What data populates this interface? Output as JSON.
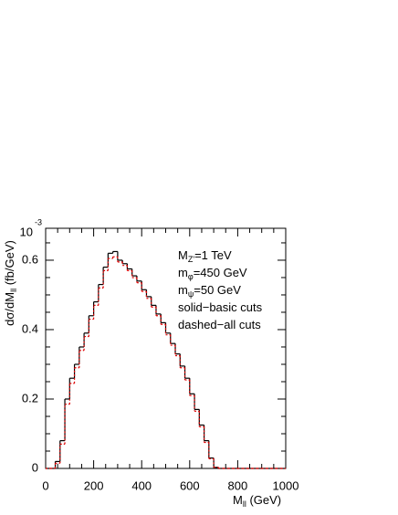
{
  "chart_data": {
    "type": "histogram",
    "bins": [
      0,
      20,
      40,
      60,
      80,
      100,
      120,
      140,
      160,
      180,
      200,
      220,
      240,
      260,
      280,
      300,
      320,
      340,
      360,
      380,
      400,
      420,
      440,
      460,
      480,
      500,
      520,
      540,
      560,
      580,
      600,
      620,
      640,
      660,
      680,
      700,
      720,
      740,
      760,
      780,
      800,
      820,
      840,
      860,
      880,
      900,
      920,
      940,
      960,
      980,
      1000
    ],
    "series": [
      {
        "color": "#000000",
        "dash": false,
        "values": [
          0,
          0,
          0.02,
          0.08,
          0.2,
          0.26,
          0.3,
          0.35,
          0.39,
          0.44,
          0.48,
          0.53,
          0.58,
          0.62,
          0.625,
          0.6,
          0.59,
          0.575,
          0.555,
          0.54,
          0.515,
          0.495,
          0.47,
          0.445,
          0.42,
          0.39,
          0.36,
          0.33,
          0.295,
          0.26,
          0.215,
          0.17,
          0.125,
          0.08,
          0.03,
          0.003,
          0,
          0,
          0,
          0,
          0,
          0,
          0,
          0,
          0,
          0,
          0,
          0,
          0,
          0
        ]
      },
      {
        "color": "#dd0000",
        "dash": true,
        "values": [
          0,
          0,
          0.015,
          0.07,
          0.185,
          0.245,
          0.29,
          0.34,
          0.38,
          0.43,
          0.47,
          0.52,
          0.57,
          0.605,
          0.61,
          0.595,
          0.585,
          0.57,
          0.55,
          0.535,
          0.51,
          0.49,
          0.465,
          0.44,
          0.415,
          0.385,
          0.355,
          0.325,
          0.29,
          0.255,
          0.21,
          0.165,
          0.12,
          0.075,
          0.028,
          0.003,
          0,
          0,
          0,
          0,
          0,
          0,
          0,
          0,
          0,
          0,
          0,
          0,
          0,
          0
        ]
      }
    ],
    "xlim": [
      0,
      1000
    ],
    "xticks": [
      0,
      200,
      400,
      600,
      800,
      1000
    ],
    "ylim": [
      0,
      0.692
    ],
    "yticks": [
      0,
      0.2,
      0.4,
      0.6
    ],
    "y_multiplier": {
      "base": "10",
      "exponent": "-3"
    },
    "x_label": {
      "main": "M",
      "sub": "ll",
      "rest": " (GeV)"
    },
    "y_label": {
      "main": "dσ/dM",
      "sub": "ll",
      "rest": " (fb/GeV)"
    },
    "annotations": [
      {
        "main": "M",
        "sub": "Z'",
        "rest": "=1 TeV"
      },
      {
        "main": "m",
        "sub": "φ",
        "rest": "=450 GeV"
      },
      {
        "main": "m",
        "sub": "ψ",
        "rest": "=50 GeV"
      },
      {
        "main": "solid−basic cuts"
      },
      {
        "main": "dashed−all cuts"
      }
    ]
  }
}
